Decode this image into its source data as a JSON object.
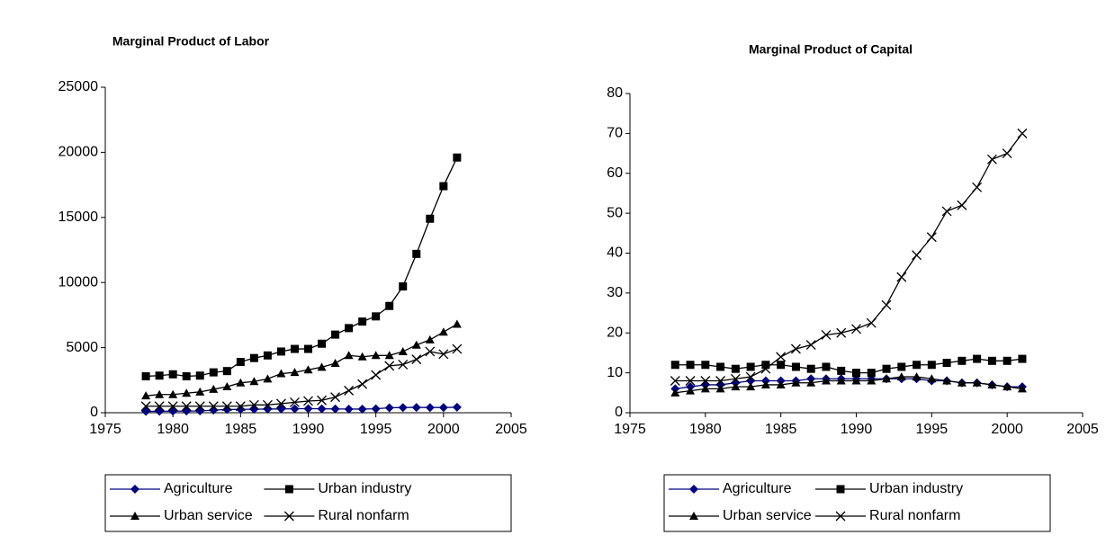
{
  "chart_data": [
    {
      "type": "line",
      "title": "Marginal Product of Labor",
      "x": [
        1978,
        1979,
        1980,
        1981,
        1982,
        1983,
        1984,
        1985,
        1986,
        1987,
        1988,
        1989,
        1990,
        1991,
        1992,
        1993,
        1994,
        1995,
        1996,
        1997,
        1998,
        1999,
        2000,
        2001
      ],
      "series": [
        {
          "name": "Agriculture",
          "color": "#000080",
          "marker": "diamond",
          "values": [
            100,
            110,
            120,
            130,
            140,
            200,
            250,
            260,
            270,
            280,
            290,
            300,
            310,
            300,
            290,
            280,
            280,
            300,
            380,
            400,
            410,
            400,
            400,
            420
          ]
        },
        {
          "name": "Urban industry",
          "color": "#000000",
          "marker": "square",
          "values": [
            2800,
            2850,
            2950,
            2800,
            2850,
            3100,
            3200,
            3900,
            4200,
            4400,
            4700,
            4900,
            4900,
            5300,
            6000,
            6500,
            7000,
            7400,
            8200,
            9700,
            12200,
            14900,
            17400,
            19600
          ]
        },
        {
          "name": "Urban service",
          "color": "#000000",
          "marker": "triangle",
          "values": [
            1300,
            1400,
            1400,
            1500,
            1600,
            1800,
            2000,
            2300,
            2400,
            2600,
            3000,
            3100,
            3300,
            3500,
            3800,
            4400,
            4300,
            4400,
            4400,
            4700,
            5200,
            5600,
            6200,
            6800
          ]
        },
        {
          "name": "Rural nonfarm",
          "color": "#000000",
          "marker": "x",
          "values": [
            500,
            500,
            500,
            500,
            500,
            500,
            500,
            500,
            600,
            600,
            700,
            800,
            900,
            950,
            1200,
            1700,
            2200,
            2900,
            3600,
            3700,
            4100,
            4700,
            4500,
            4900
          ]
        }
      ],
      "xlim": [
        1975,
        2005
      ],
      "xticks": [
        1975,
        1980,
        1985,
        1990,
        1995,
        2000,
        2005
      ],
      "ylim": [
        0,
        25000
      ],
      "yticks": [
        0,
        5000,
        10000,
        15000,
        20000,
        25000
      ],
      "legend": "bottom"
    },
    {
      "type": "line",
      "title": "Marginal Product of Capital",
      "x": [
        1978,
        1979,
        1980,
        1981,
        1982,
        1983,
        1984,
        1985,
        1986,
        1987,
        1988,
        1989,
        1990,
        1991,
        1992,
        1993,
        1994,
        1995,
        1996,
        1997,
        1998,
        1999,
        2000,
        2001
      ],
      "series": [
        {
          "name": "Agriculture",
          "color": "#000080",
          "marker": "diamond",
          "values": [
            6,
            6.5,
            7,
            7,
            7.5,
            8,
            8,
            8,
            8,
            8.5,
            8.5,
            8.5,
            8.5,
            8.5,
            8.5,
            8.5,
            8.5,
            8,
            8,
            7.5,
            7.5,
            7,
            6.5,
            6.5
          ]
        },
        {
          "name": "Urban industry",
          "color": "#000000",
          "marker": "square",
          "values": [
            12,
            12,
            12,
            11.5,
            11,
            11.5,
            12,
            12,
            11.5,
            11,
            11.5,
            10.5,
            10,
            10,
            11,
            11.5,
            12,
            12,
            12.5,
            13,
            13.5,
            13,
            13,
            13.5
          ]
        },
        {
          "name": "Urban service",
          "color": "#000000",
          "marker": "triangle",
          "values": [
            5,
            5.5,
            6,
            6,
            6.5,
            6.5,
            7,
            7,
            7.5,
            7.5,
            8,
            8,
            8,
            8,
            8.5,
            9,
            9,
            8.5,
            8,
            7.5,
            7.5,
            7,
            6.5,
            6
          ]
        },
        {
          "name": "Rural nonfarm",
          "color": "#000000",
          "marker": "x",
          "values": [
            8,
            8,
            8,
            8,
            8.5,
            9,
            11,
            14,
            16,
            17,
            19.5,
            20,
            21,
            22.5,
            27,
            34,
            39.5,
            44,
            50.5,
            52,
            56.5,
            63.5,
            65,
            70
          ]
        }
      ],
      "xlim": [
        1975,
        2005
      ],
      "xticks": [
        1975,
        1980,
        1985,
        1990,
        1995,
        2000,
        2005
      ],
      "ylim": [
        0,
        80
      ],
      "yticks": [
        0,
        10,
        20,
        30,
        40,
        50,
        60,
        70,
        80
      ],
      "legend": "bottom"
    }
  ]
}
